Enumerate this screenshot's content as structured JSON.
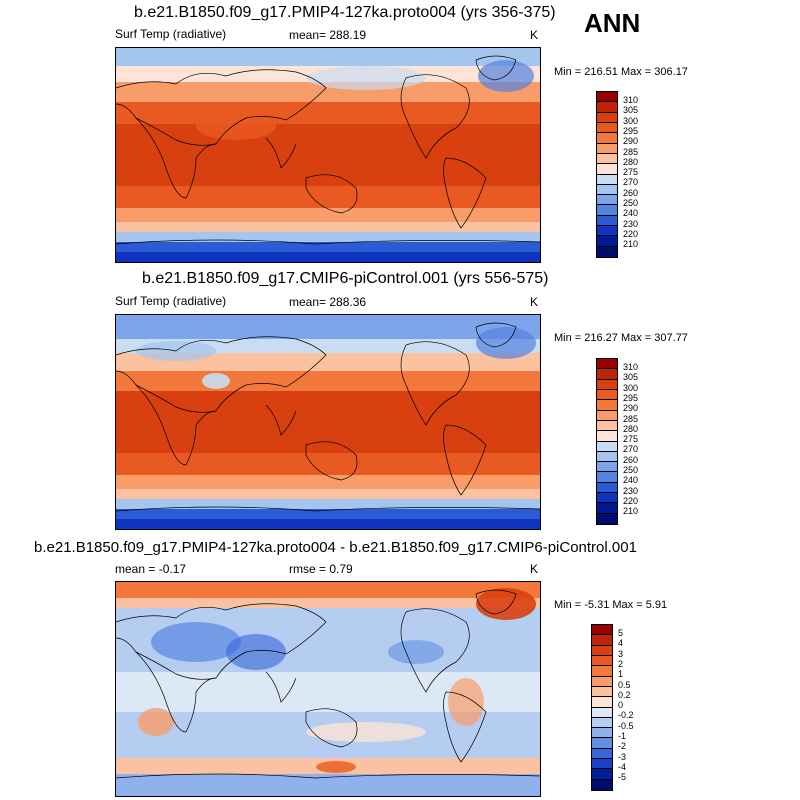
{
  "season": "ANN",
  "panels": [
    {
      "title": "b.e21.B1850.f09_g17.PMIP4-127ka.proto004 (yrs 356-375)",
      "variable": "Surf Temp (radiative)",
      "stat": "mean= 288.19",
      "units": "K",
      "minmax": "Min = 216.51 Max = 306.17",
      "levels": [
        "310",
        "305",
        "300",
        "295",
        "290",
        "285",
        "280",
        "275",
        "270",
        "260",
        "250",
        "240",
        "230",
        "220",
        "210"
      ],
      "colors": [
        "#990000",
        "#c1220a",
        "#d9400f",
        "#e85a21",
        "#f2793b",
        "#f89c6a",
        "#fbc2a2",
        "#fde4d6",
        "#c8dcf2",
        "#a4c5ee",
        "#7ea5ea",
        "#5483e0",
        "#2c5bd6",
        "#0d33bf",
        "#001a94",
        "#000c6c"
      ]
    },
    {
      "title": "b.e21.B1850.f09_g17.CMIP6-piControl.001 (yrs 556-575)",
      "variable": "Surf Temp (radiative)",
      "stat": "mean= 288.36",
      "units": "K",
      "minmax": "Min = 216.27 Max = 307.77",
      "levels": [
        "310",
        "305",
        "300",
        "295",
        "290",
        "285",
        "280",
        "275",
        "270",
        "260",
        "250",
        "240",
        "230",
        "220",
        "210"
      ],
      "colors": [
        "#990000",
        "#c1220a",
        "#d9400f",
        "#e85a21",
        "#f2793b",
        "#f89c6a",
        "#fbc2a2",
        "#fde4d6",
        "#c8dcf2",
        "#a4c5ee",
        "#7ea5ea",
        "#5483e0",
        "#2c5bd6",
        "#0d33bf",
        "#001a94",
        "#000c6c"
      ]
    },
    {
      "title": "b.e21.B1850.f09_g17.PMIP4-127ka.proto004 - b.e21.B1850.f09_g17.CMIP6-piControl.001",
      "variable": "mean =  -0.17",
      "stat": "rmse =   0.79",
      "units": "K",
      "minmax": "Min =  -5.31 Max =   5.91",
      "levels": [
        "5",
        "4",
        "3",
        "2",
        "1",
        "0.5",
        "0.2",
        "0",
        "-0.2",
        "-0.5",
        "-1",
        "-2",
        "-3",
        "-4",
        "-5"
      ],
      "colors": [
        "#990000",
        "#c1220a",
        "#d9400f",
        "#e85a21",
        "#f2793b",
        "#f89c6a",
        "#fbc2a2",
        "#fde4d6",
        "#dde8f7",
        "#b5cdf0",
        "#8fb2ec",
        "#638fe3",
        "#3865da",
        "#1a40c8",
        "#001f9c",
        "#000c6c"
      ]
    }
  ]
}
